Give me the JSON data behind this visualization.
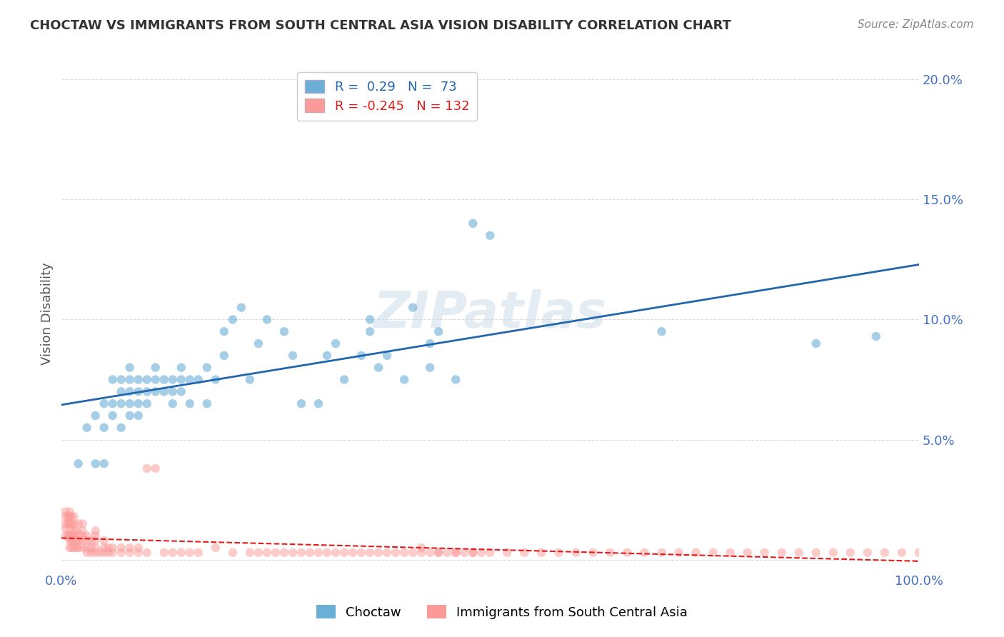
{
  "title": "CHOCTAW VS IMMIGRANTS FROM SOUTH CENTRAL ASIA VISION DISABILITY CORRELATION CHART",
  "source": "Source: ZipAtlas.com",
  "ylabel": "Vision Disability",
  "xlabel": "",
  "xlim": [
    0,
    1.0
  ],
  "ylim": [
    -0.005,
    0.21
  ],
  "yticks": [
    0.0,
    0.05,
    0.1,
    0.15,
    0.2
  ],
  "ytick_labels": [
    "",
    "5.0%",
    "10.0%",
    "15.0%",
    "20.0%"
  ],
  "xticks": [
    0.0,
    0.25,
    0.5,
    0.75,
    1.0
  ],
  "xtick_labels": [
    "0.0%",
    "",
    "",
    "",
    "100.0%"
  ],
  "blue_R": 0.29,
  "blue_N": 73,
  "pink_R": -0.245,
  "pink_N": 132,
  "blue_color": "#6baed6",
  "pink_color": "#fb9a99",
  "blue_line_color": "#2166ac",
  "pink_line_color": "#e31a1c",
  "watermark": "ZIPatlas",
  "background_color": "#ffffff",
  "grid_color": "#cccccc",
  "title_color": "#333333",
  "axis_label_color": "#555555",
  "tick_label_color": "#4472c4",
  "blue_scatter_x": [
    0.02,
    0.03,
    0.04,
    0.04,
    0.05,
    0.05,
    0.05,
    0.06,
    0.06,
    0.06,
    0.07,
    0.07,
    0.07,
    0.07,
    0.08,
    0.08,
    0.08,
    0.08,
    0.08,
    0.09,
    0.09,
    0.09,
    0.09,
    0.1,
    0.1,
    0.1,
    0.11,
    0.11,
    0.11,
    0.12,
    0.12,
    0.13,
    0.13,
    0.13,
    0.14,
    0.14,
    0.14,
    0.15,
    0.15,
    0.16,
    0.17,
    0.17,
    0.18,
    0.19,
    0.19,
    0.2,
    0.21,
    0.22,
    0.23,
    0.24,
    0.26,
    0.27,
    0.28,
    0.3,
    0.31,
    0.32,
    0.33,
    0.35,
    0.36,
    0.36,
    0.37,
    0.38,
    0.4,
    0.41,
    0.43,
    0.43,
    0.44,
    0.46,
    0.48,
    0.5,
    0.7,
    0.88,
    0.95
  ],
  "blue_scatter_y": [
    0.04,
    0.055,
    0.04,
    0.06,
    0.04,
    0.055,
    0.065,
    0.06,
    0.065,
    0.075,
    0.055,
    0.065,
    0.07,
    0.075,
    0.06,
    0.065,
    0.07,
    0.075,
    0.08,
    0.06,
    0.065,
    0.07,
    0.075,
    0.065,
    0.07,
    0.075,
    0.07,
    0.075,
    0.08,
    0.07,
    0.075,
    0.065,
    0.07,
    0.075,
    0.07,
    0.075,
    0.08,
    0.065,
    0.075,
    0.075,
    0.065,
    0.08,
    0.075,
    0.085,
    0.095,
    0.1,
    0.105,
    0.075,
    0.09,
    0.1,
    0.095,
    0.085,
    0.065,
    0.065,
    0.085,
    0.09,
    0.075,
    0.085,
    0.095,
    0.1,
    0.08,
    0.085,
    0.075,
    0.105,
    0.08,
    0.09,
    0.095,
    0.075,
    0.14,
    0.135,
    0.095,
    0.09,
    0.093
  ],
  "pink_scatter_x": [
    0.005,
    0.005,
    0.005,
    0.005,
    0.005,
    0.008,
    0.008,
    0.008,
    0.01,
    0.01,
    0.01,
    0.01,
    0.01,
    0.01,
    0.01,
    0.012,
    0.012,
    0.012,
    0.012,
    0.012,
    0.015,
    0.015,
    0.015,
    0.015,
    0.015,
    0.015,
    0.018,
    0.018,
    0.018,
    0.02,
    0.02,
    0.02,
    0.02,
    0.025,
    0.025,
    0.025,
    0.025,
    0.025,
    0.03,
    0.03,
    0.03,
    0.03,
    0.035,
    0.035,
    0.035,
    0.04,
    0.04,
    0.04,
    0.04,
    0.04,
    0.045,
    0.05,
    0.05,
    0.05,
    0.055,
    0.055,
    0.06,
    0.06,
    0.07,
    0.07,
    0.08,
    0.08,
    0.09,
    0.09,
    0.1,
    0.1,
    0.11,
    0.12,
    0.13,
    0.14,
    0.15,
    0.16,
    0.18,
    0.2,
    0.22,
    0.23,
    0.24,
    0.25,
    0.26,
    0.27,
    0.28,
    0.29,
    0.3,
    0.31,
    0.32,
    0.33,
    0.34,
    0.35,
    0.36,
    0.37,
    0.38,
    0.39,
    0.4,
    0.41,
    0.42,
    0.43,
    0.44,
    0.45,
    0.46,
    0.47,
    0.48,
    0.49,
    0.5,
    0.52,
    0.54,
    0.56,
    0.58,
    0.6,
    0.62,
    0.64,
    0.66,
    0.68,
    0.7,
    0.72,
    0.74,
    0.76,
    0.78,
    0.8,
    0.82,
    0.84,
    0.86,
    0.88,
    0.9,
    0.92,
    0.94,
    0.96,
    0.98,
    1.0,
    0.42,
    0.44,
    0.46,
    0.48
  ],
  "pink_scatter_y": [
    0.01,
    0.013,
    0.015,
    0.018,
    0.02,
    0.01,
    0.015,
    0.018,
    0.005,
    0.008,
    0.01,
    0.013,
    0.015,
    0.018,
    0.02,
    0.005,
    0.008,
    0.01,
    0.015,
    0.018,
    0.005,
    0.008,
    0.01,
    0.012,
    0.015,
    0.018,
    0.005,
    0.008,
    0.012,
    0.005,
    0.008,
    0.01,
    0.015,
    0.005,
    0.008,
    0.01,
    0.012,
    0.015,
    0.003,
    0.005,
    0.008,
    0.01,
    0.003,
    0.005,
    0.008,
    0.003,
    0.005,
    0.008,
    0.01,
    0.012,
    0.003,
    0.003,
    0.005,
    0.008,
    0.003,
    0.005,
    0.003,
    0.005,
    0.003,
    0.005,
    0.003,
    0.005,
    0.003,
    0.005,
    0.003,
    0.038,
    0.038,
    0.003,
    0.003,
    0.003,
    0.003,
    0.003,
    0.005,
    0.003,
    0.003,
    0.003,
    0.003,
    0.003,
    0.003,
    0.003,
    0.003,
    0.003,
    0.003,
    0.003,
    0.003,
    0.003,
    0.003,
    0.003,
    0.003,
    0.003,
    0.003,
    0.003,
    0.003,
    0.003,
    0.003,
    0.003,
    0.003,
    0.003,
    0.003,
    0.003,
    0.003,
    0.003,
    0.003,
    0.003,
    0.003,
    0.003,
    0.003,
    0.003,
    0.003,
    0.003,
    0.003,
    0.003,
    0.003,
    0.003,
    0.003,
    0.003,
    0.003,
    0.003,
    0.003,
    0.003,
    0.003,
    0.003,
    0.003,
    0.003,
    0.003,
    0.003,
    0.003,
    0.003,
    0.005,
    0.003,
    0.003,
    0.003
  ]
}
